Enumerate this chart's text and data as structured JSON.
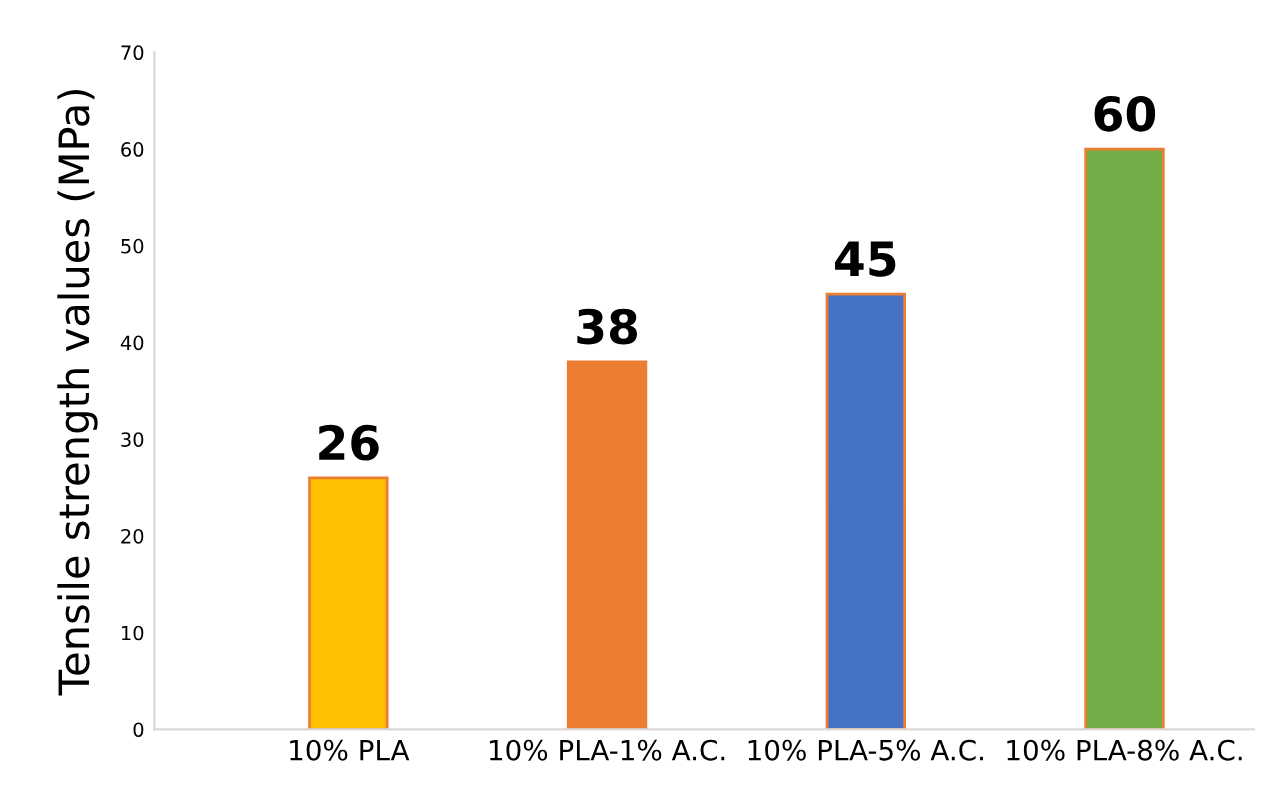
{
  "chart_data": {
    "type": "bar",
    "ylabel": "Tensile strength values (MPa)",
    "categories": [
      "10% PLA",
      "10% PLA-1% A.C.",
      "10% PLA-5% A.C.",
      "10% PLA-8% A.C."
    ],
    "values": [
      26,
      38,
      45,
      60
    ],
    "colors": [
      "#ffc000",
      "#ed7d31",
      "#4472c4",
      "#70ad47"
    ],
    "ylim": [
      0,
      70
    ],
    "yticks": [
      0,
      10,
      20,
      30,
      40,
      50,
      60,
      70
    ],
    "data_labels": true,
    "grid": false
  }
}
